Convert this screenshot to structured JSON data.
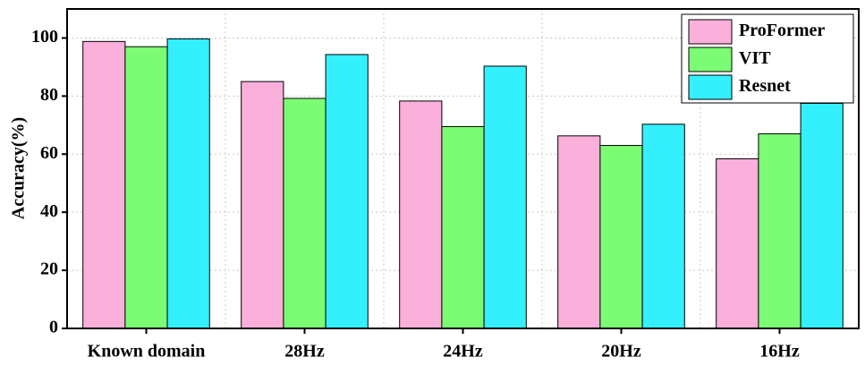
{
  "chart_data": {
    "type": "bar",
    "y_label": "Accuracy(%)",
    "categories": [
      "Known domain",
      "28Hz",
      "24Hz",
      "20Hz",
      "16Hz"
    ],
    "series": [
      {
        "name": "ProFormer",
        "color": "#fbb0dc",
        "values": [
          98.8,
          85,
          78.3,
          66.3,
          58.4
        ]
      },
      {
        "name": "VIT",
        "color": "#7cfc74",
        "values": [
          97,
          79.2,
          69.5,
          63,
          67
        ]
      },
      {
        "name": "Resnet",
        "color": "#33f0fc",
        "values": [
          99.7,
          94.3,
          90.3,
          70.3,
          77.5
        ]
      }
    ],
    "ylim": [
      0,
      110
    ],
    "yticks": [
      0,
      20,
      40,
      60,
      80,
      100
    ],
    "grid": true,
    "legend": "top-right"
  }
}
